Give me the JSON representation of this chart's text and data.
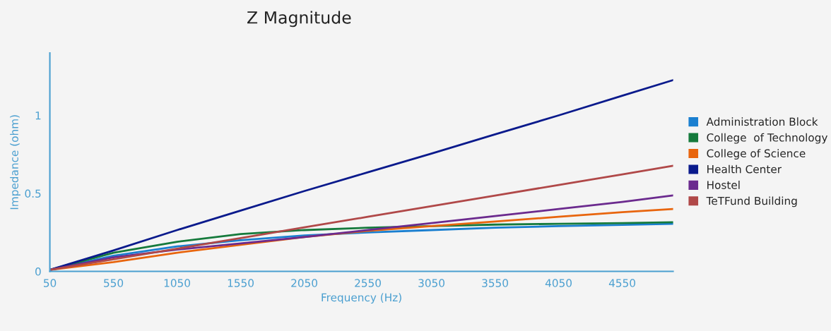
{
  "chart_data": {
    "type": "line",
    "title": "Z Magnitude",
    "xlabel": "Frequency (Hz)",
    "ylabel": "Impedance (ohm)",
    "x": [
      50,
      550,
      1050,
      1550,
      2050,
      2550,
      3050,
      3550,
      4050,
      4550,
      4950
    ],
    "series": [
      {
        "name": "Administration Block",
        "color": "#1a7fd0",
        "values": [
          0.01,
          0.1,
          0.16,
          0.2,
          0.23,
          0.25,
          0.265,
          0.28,
          0.29,
          0.298,
          0.305
        ]
      },
      {
        "name": "College  of Technology",
        "color": "#157a3c",
        "values": [
          0.01,
          0.12,
          0.19,
          0.24,
          0.265,
          0.28,
          0.29,
          0.3,
          0.305,
          0.31,
          0.315
        ]
      },
      {
        "name": "College of Science",
        "color": "#e8650e",
        "values": [
          0.01,
          0.06,
          0.12,
          0.17,
          0.22,
          0.26,
          0.29,
          0.32,
          0.35,
          0.38,
          0.4
        ]
      },
      {
        "name": "Health Center",
        "color": "#0a1a8c",
        "values": [
          0.01,
          0.134,
          0.265,
          0.39,
          0.515,
          0.635,
          0.755,
          0.878,
          1.0,
          1.126,
          1.226
        ]
      },
      {
        "name": "Hostel",
        "color": "#6b2a8e",
        "values": [
          0.01,
          0.09,
          0.14,
          0.18,
          0.22,
          0.265,
          0.31,
          0.355,
          0.4,
          0.445,
          0.487
        ]
      },
      {
        "name": "TeTFund Building",
        "color": "#b04848",
        "values": [
          0.01,
          0.078,
          0.146,
          0.214,
          0.282,
          0.35,
          0.418,
          0.486,
          0.554,
          0.622,
          0.677
        ]
      }
    ],
    "xlim": [
      50,
      4950
    ],
    "ylim": [
      0,
      1.4
    ],
    "xticks": [
      50,
      550,
      1050,
      1550,
      2050,
      2550,
      3050,
      3550,
      4050,
      4550
    ],
    "yticks": [
      0,
      0.5,
      1
    ],
    "legend": "right",
    "grid": false,
    "marker": "none",
    "line_style": "solid"
  }
}
